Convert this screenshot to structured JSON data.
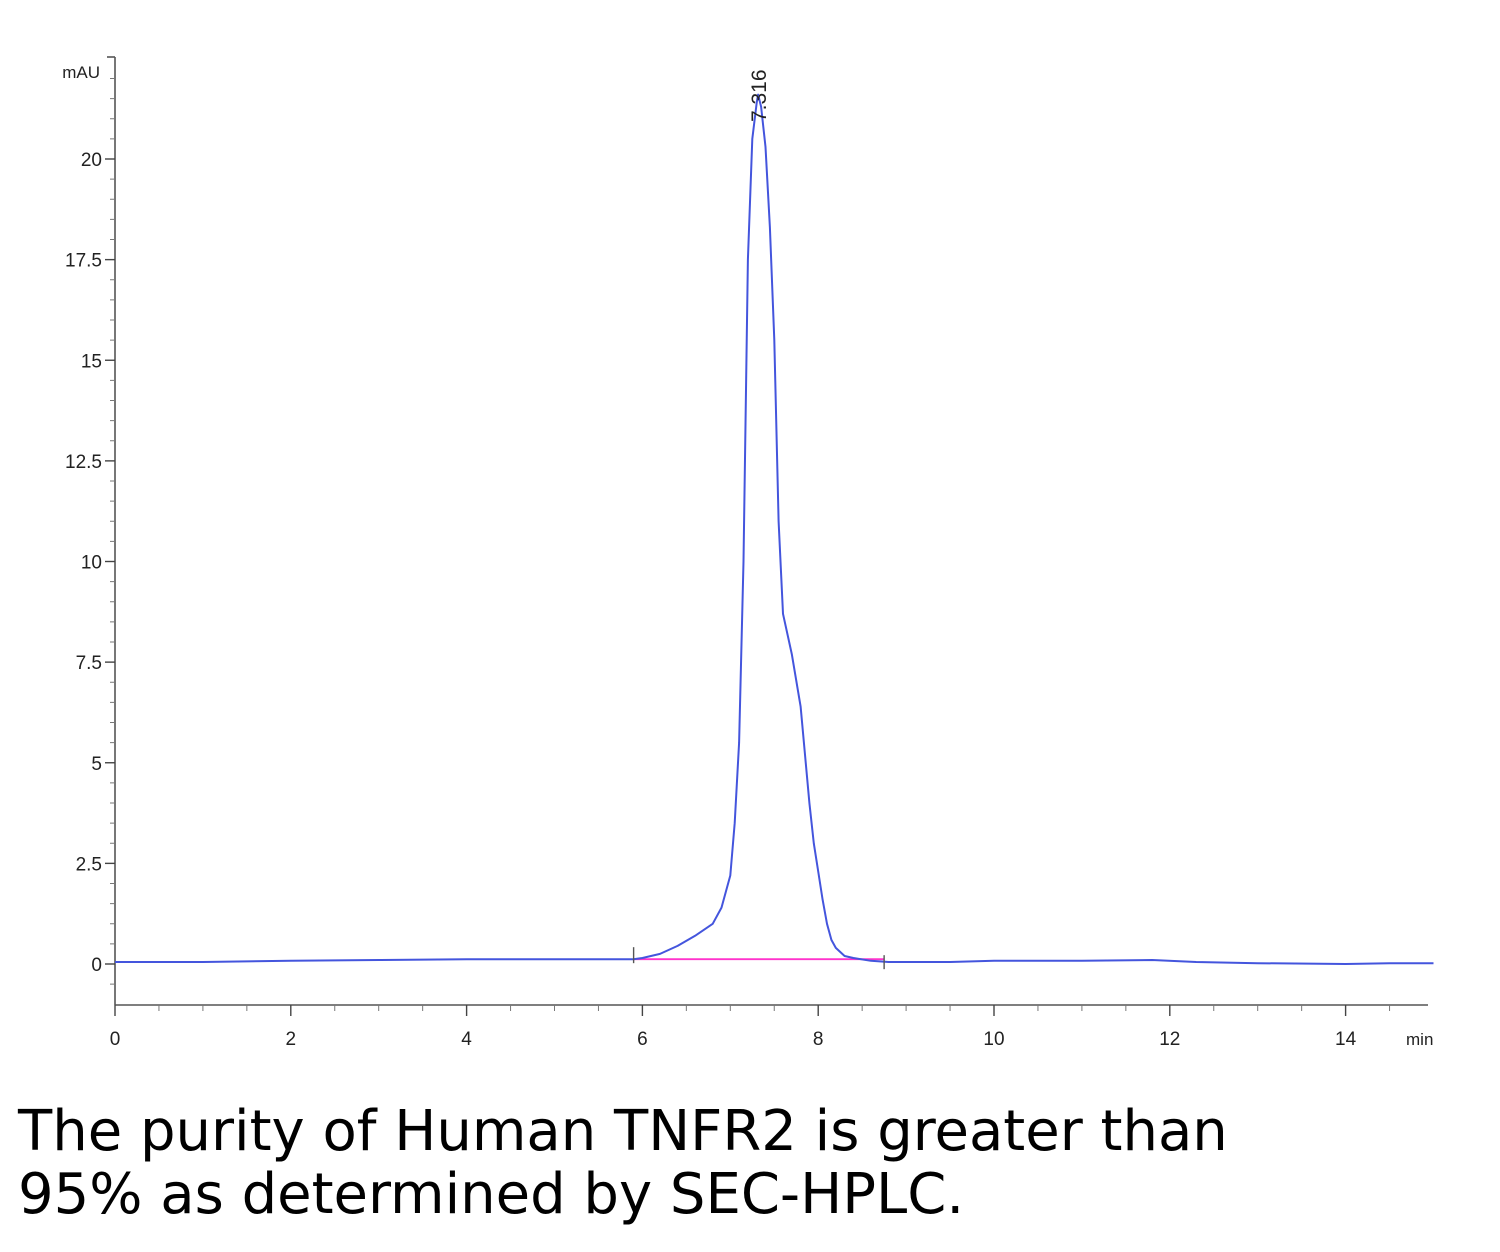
{
  "chart_data": {
    "type": "line",
    "title": "",
    "xlabel": "min",
    "ylabel": "mAU",
    "xlim": [
      0,
      15
    ],
    "ylim": [
      -1,
      22.5
    ],
    "x_ticks": [
      0,
      2,
      4,
      6,
      8,
      10,
      12,
      14
    ],
    "x_tick_labels": [
      "0",
      "2",
      "4",
      "6",
      "8",
      "10",
      "12",
      "14"
    ],
    "y_ticks": [
      0,
      2.5,
      5,
      7.5,
      10,
      12.5,
      15,
      17.5,
      20
    ],
    "y_tick_labels": [
      "0",
      "2.5",
      "5",
      "7.5",
      "10",
      "12.5",
      "15",
      "17.5",
      "20"
    ],
    "grid": false,
    "series": [
      {
        "color": "#4455dd",
        "x": [
          0,
          0.5,
          1,
          2,
          3,
          4,
          5,
          5.8,
          5.9,
          6.0,
          6.2,
          6.4,
          6.6,
          6.8,
          6.9,
          7.0,
          7.05,
          7.1,
          7.15,
          7.2,
          7.25,
          7.3,
          7.316,
          7.35,
          7.4,
          7.45,
          7.5,
          7.55,
          7.6,
          7.7,
          7.8,
          7.85,
          7.9,
          7.95,
          8.0,
          8.05,
          8.1,
          8.15,
          8.2,
          8.3,
          8.4,
          8.6,
          8.8,
          9.5,
          10,
          11,
          11.8,
          12.3,
          13,
          14,
          14.5,
          15
        ],
        "y": [
          0.05,
          0.05,
          0.05,
          0.08,
          0.1,
          0.12,
          0.12,
          0.12,
          0.12,
          0.15,
          0.25,
          0.45,
          0.7,
          1.0,
          1.4,
          2.2,
          3.5,
          5.5,
          10,
          17.5,
          20.5,
          21.4,
          21.6,
          21.3,
          20.3,
          18.3,
          15.5,
          11.0,
          8.7,
          7.7,
          6.4,
          5.2,
          4.0,
          3.0,
          2.3,
          1.6,
          1.0,
          0.6,
          0.4,
          0.2,
          0.15,
          0.08,
          0.05,
          0.05,
          0.08,
          0.08,
          0.1,
          0.05,
          0.02,
          0.0,
          0.02,
          0.02
        ]
      },
      {
        "color": "#ff33cc",
        "x": [
          5.9,
          8.75
        ],
        "y": [
          0.12,
          0.12
        ]
      }
    ],
    "annotations": [
      {
        "text": "7.316",
        "x": 7.316,
        "y": 21.6
      }
    ]
  },
  "caption": {
    "line1": "The purity of Human TNFR2 is greater than",
    "line2": "95% as determined by SEC-HPLC."
  }
}
